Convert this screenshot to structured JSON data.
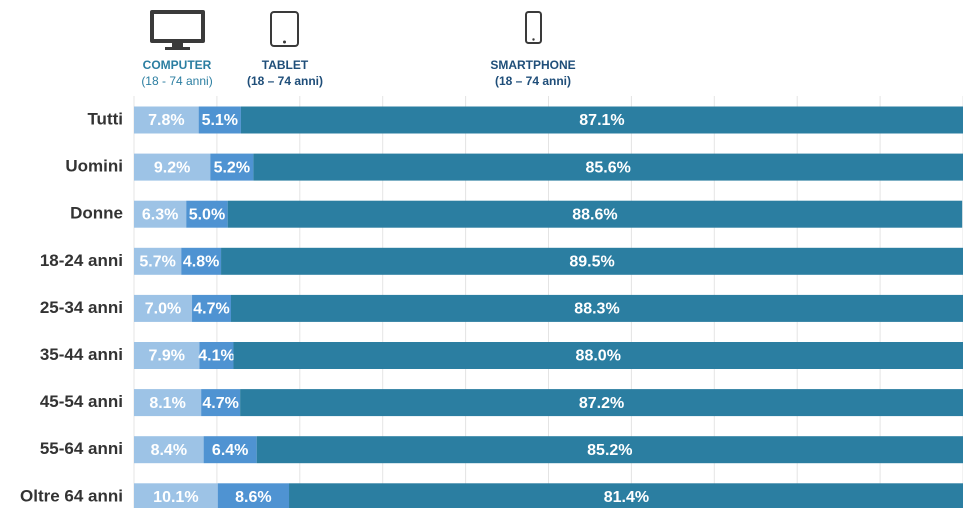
{
  "chart_data": {
    "type": "stacked_bar_horizontal",
    "categories": [
      "Tutti",
      "Uomini",
      "Donne",
      "18-24 anni",
      "25-34 anni",
      "35-44 anni",
      "45-54 anni",
      "55-64 anni",
      "Oltre 64 anni"
    ],
    "series": [
      {
        "name": "COMPUTER",
        "range": "(18 - 74 anni)",
        "color": "#9dc3e6",
        "values": [
          7.8,
          9.2,
          6.3,
          5.7,
          7.0,
          7.9,
          8.1,
          8.4,
          10.1
        ],
        "value_labels": [
          "7.8%",
          "9.2%",
          "6.3%",
          "5.7%",
          "7.0%",
          "7.9%",
          "8.1%",
          "8.4%",
          "10.1%"
        ]
      },
      {
        "name": "TABLET",
        "range": "(18 – 74 anni)",
        "color": "#4f93d2",
        "values": [
          5.1,
          5.2,
          5.0,
          4.8,
          4.7,
          4.1,
          4.7,
          6.4,
          8.6
        ],
        "value_labels": [
          "5.1%",
          "5.2%",
          "5.0%",
          "4.8%",
          "4.7%",
          "4.1%",
          "4.7%",
          "6.4%",
          "8.6%"
        ]
      },
      {
        "name": "SMARTPHONE",
        "range": "(18 – 74 anni)",
        "color": "#2b7ea1",
        "values": [
          87.1,
          85.6,
          88.6,
          89.5,
          88.3,
          88.0,
          87.2,
          85.2,
          81.4
        ],
        "value_labels": [
          "87.1%",
          "85.6%",
          "88.6%",
          "89.5%",
          "88.3%",
          "88.0%",
          "87.2%",
          "85.2%",
          "81.4%"
        ]
      }
    ],
    "xlim": [
      0,
      100
    ],
    "xticks": [
      0,
      10,
      20,
      30,
      40,
      50,
      60,
      70,
      80,
      90,
      100
    ],
    "grid": true
  }
}
